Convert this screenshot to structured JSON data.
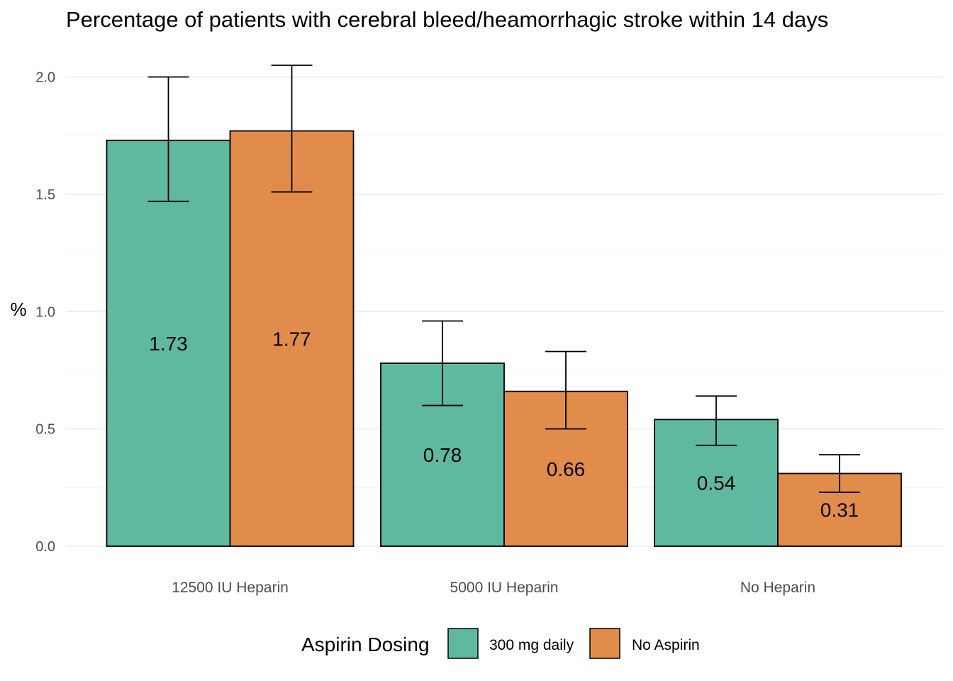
{
  "chart_data": {
    "type": "bar",
    "title": "Percentage of patients with cerebral bleed/heamorrhagic stroke within 14 days",
    "xlabel": "",
    "ylabel": "%",
    "ylim": [
      0,
      2.0
    ],
    "yticks": [
      "0.0",
      "0.5",
      "1.0",
      "1.5",
      "2.0"
    ],
    "categories": [
      "12500 IU Heparin",
      "5000 IU Heparin",
      "No Heparin"
    ],
    "grid": true,
    "legend": {
      "title": "Aspirin Dosing",
      "position": "bottom"
    },
    "series": [
      {
        "name": "300 mg daily",
        "color": "#5fb9a0",
        "values": [
          1.73,
          0.78,
          0.54
        ],
        "labels": [
          "1.73",
          "0.78",
          "0.54"
        ],
        "error_low": [
          1.47,
          0.6,
          0.43
        ],
        "error_high": [
          2.0,
          0.96,
          0.64
        ]
      },
      {
        "name": "No Aspirin",
        "color": "#e28c4c",
        "values": [
          1.77,
          0.66,
          0.31
        ],
        "labels": [
          "1.77",
          "0.66",
          "0.31"
        ],
        "error_low": [
          1.51,
          0.5,
          0.23
        ],
        "error_high": [
          2.05,
          0.83,
          0.39
        ]
      }
    ]
  }
}
